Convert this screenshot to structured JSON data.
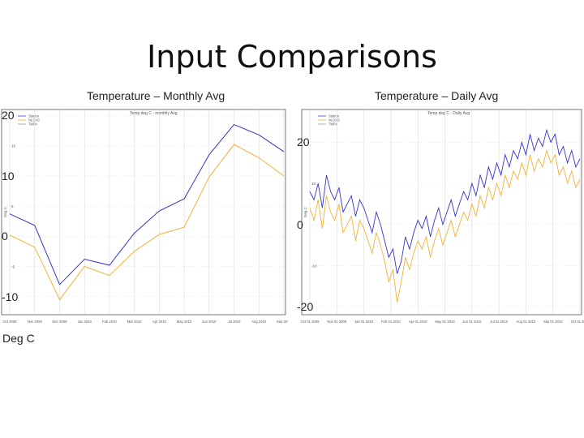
{
  "slide": {
    "title": "Input Comparisons",
    "unit_label": "Deg C"
  },
  "colors": {
    "blue": "#3333cc",
    "orange": "#f2b233",
    "grid": "#cccccc",
    "frame": "#555555"
  },
  "chart_data": [
    {
      "type": "line",
      "title": "Temperature – Monthly Avg",
      "subtitle": "Temp deg C - monthly Avg",
      "ylabel": "Deg C",
      "ylim": [
        -13,
        21
      ],
      "big_y_ticks": [
        "20",
        "10",
        "0",
        "-10"
      ],
      "big_y_tick_values": [
        20,
        10,
        0,
        -10
      ],
      "small_y_ticks": [
        "15",
        "5",
        "-5"
      ],
      "small_y_tick_values": [
        15,
        5,
        -5
      ],
      "categories": [
        "Oct 2009",
        "Nov 2009",
        "Dec 2009",
        "Jan 2010",
        "Feb 2010",
        "Mar 2010",
        "Apr 2010",
        "May 2010",
        "Jun 2010",
        "Jul 2010",
        "Aug 2010",
        "Sep 2010"
      ],
      "x_tick_labels": [
        "Oct 2009",
        "Nov 2009",
        "Dec 2009",
        "Jan 2010",
        "Feb 2010",
        "Mar 2010",
        "Apr 2010",
        "May 2010",
        "Jun 2010",
        "Jul 2010",
        "Aug 2010",
        "Sep 2010"
      ],
      "legend": [
        "Station",
        "NLDAS",
        "TMPA"
      ],
      "legend_position": "top-left",
      "grid": true,
      "series": [
        {
          "name": "Station",
          "color": "#3333cc",
          "values": [
            3.7,
            1.8,
            -8.0,
            -3.8,
            -4.8,
            0.5,
            4.2,
            6.2,
            13.5,
            18.5,
            16.8,
            14.0
          ]
        },
        {
          "name": "NLDAS",
          "color": "#f2b233",
          "values": [
            0.2,
            -1.8,
            -10.5,
            -5.0,
            -6.5,
            -2.5,
            0.3,
            1.5,
            9.8,
            15.2,
            13.0,
            10.0
          ]
        }
      ]
    },
    {
      "type": "line",
      "title": "Temperature – Daily Avg",
      "subtitle": "Temp deg C - Daily Avg",
      "ylabel": "Deg C",
      "ylim": [
        -22,
        28
      ],
      "big_y_ticks": [
        "20",
        "0",
        "-20"
      ],
      "big_y_tick_values": [
        20,
        0,
        -20
      ],
      "small_y_ticks": [
        "10",
        "-10"
      ],
      "small_y_tick_values": [
        10,
        -10
      ],
      "x_tick_labels": [
        "Oct 01 2009",
        "Nov 01 2009",
        "Jan 01 2010",
        "Feb 01 2010",
        "Apr 01 2010",
        "May 01 2010",
        "Jun 01 2010",
        "Jul 01 2010",
        "Aug 01 2010",
        "Sep 01 2010",
        "Oct 01 2010"
      ],
      "legend": [
        "Station",
        "NLDAS",
        "TMPA"
      ],
      "legend_position": "top-left",
      "grid": true,
      "series": [
        {
          "name": "Station",
          "color": "#3333cc",
          "values": [
            8.0,
            6.0,
            10.0,
            4.0,
            12.0,
            8.0,
            6.0,
            9.0,
            3.0,
            5.0,
            7.0,
            2.0,
            6.0,
            4.0,
            1.0,
            -2.0,
            3.0,
            0.0,
            -4.0,
            -8.0,
            -6.0,
            -12.0,
            -9.0,
            -3.0,
            -6.0,
            -2.0,
            1.0,
            -1.0,
            2.0,
            -3.0,
            1.0,
            4.0,
            0.0,
            3.0,
            6.0,
            2.0,
            5.0,
            8.0,
            6.0,
            10.0,
            7.0,
            12.0,
            9.0,
            14.0,
            11.0,
            15.0,
            12.0,
            17.0,
            14.0,
            18.0,
            16.0,
            20.0,
            17.0,
            22.0,
            18.0,
            21.0,
            19.0,
            23.0,
            20.0,
            22.0,
            17.0,
            19.0,
            15.0,
            18.0,
            14.0,
            16.0
          ]
        },
        {
          "name": "NLDAS",
          "color": "#f2b233",
          "values": [
            4.0,
            1.0,
            6.0,
            -1.0,
            7.0,
            3.0,
            1.0,
            5.0,
            -2.0,
            0.0,
            2.0,
            -4.0,
            1.0,
            -1.0,
            -4.0,
            -7.0,
            -2.0,
            -5.0,
            -9.0,
            -14.0,
            -11.0,
            -19.0,
            -14.0,
            -8.0,
            -11.0,
            -7.0,
            -4.0,
            -6.0,
            -3.0,
            -8.0,
            -4.0,
            -1.0,
            -5.0,
            -2.0,
            1.0,
            -3.0,
            0.0,
            3.0,
            1.0,
            5.0,
            2.0,
            7.0,
            4.0,
            9.0,
            6.0,
            10.0,
            7.0,
            12.0,
            9.0,
            13.0,
            11.0,
            15.0,
            12.0,
            17.0,
            13.0,
            16.0,
            14.0,
            18.0,
            15.0,
            17.0,
            12.0,
            14.0,
            10.0,
            13.0,
            9.0,
            11.0
          ]
        }
      ]
    }
  ]
}
